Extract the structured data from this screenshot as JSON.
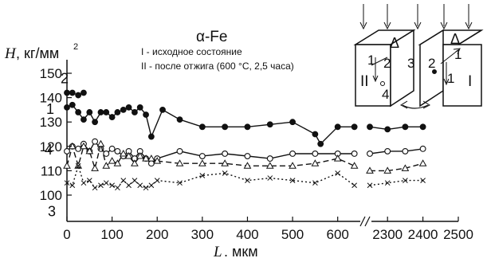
{
  "chart_data": {
    "type": "line",
    "title": "α-Fe",
    "ylabel_var": "H",
    "ylabel_unit": ", кг/мм",
    "ylabel_exp": "2",
    "xlabel_var": "L",
    "xlabel_unit": ". мкм",
    "legend_lines": [
      "I - исходное состояние",
      "II - после отжига (600 °C, 2,5 часа)"
    ],
    "inset_labels": [
      "I",
      "II",
      "Δ",
      "1",
      "2",
      "3",
      "4",
      "Δ",
      "1",
      "2",
      "1"
    ],
    "y_ticks": [
      "150",
      "140",
      "130",
      "120",
      "110",
      "100"
    ],
    "y_tick_values": [
      150,
      140,
      130,
      120,
      110,
      100
    ],
    "x_ticks": [
      "0",
      "100",
      "200",
      "300",
      "400",
      "500",
      "600",
      "2300",
      "2400",
      "2500"
    ],
    "x_tick_values": [
      0,
      100,
      200,
      300,
      400,
      500,
      600,
      2300,
      2400,
      2500
    ],
    "x_axis_break": [
      650,
      2250
    ],
    "ylim": [
      95,
      152
    ],
    "series": [
      {
        "label": "1",
        "marker": "filled-circle",
        "dash": "solid",
        "segments": [
          {
            "x": [
              0,
              12,
              25,
              37,
              50,
              62,
              75,
              87,
              100,
              112,
              125,
              137,
              150,
              162,
              175,
              187,
              212,
              250,
              300,
              350,
              400,
              450,
              500,
              550,
              562,
              600,
              637
            ],
            "y": [
              136,
              137,
              134,
              131,
              134,
              130,
              134,
              134,
              132,
              134,
              135,
              136,
              134,
              136,
              133,
              124,
              135,
              131,
              128,
              128,
              128,
              129,
              130,
              125,
              121,
              128,
              128
            ]
          },
          {
            "x": [
              2250,
              2300,
              2350,
              2400
            ],
            "y": [
              128,
              127,
              128,
              128
            ]
          }
        ]
      },
      {
        "label": "2",
        "marker": "filled-circle",
        "dash": "solid",
        "segments": [
          {
            "x": [
              0,
              12,
              25,
              37
            ],
            "y": [
              142,
              142,
              141,
              142
            ]
          }
        ]
      },
      {
        "label": "4",
        "marker": "open-circle",
        "dash": "solid",
        "segments": [
          {
            "x": [
              0,
              12,
              25,
              37,
              50,
              62,
              75,
              87,
              100,
              112,
              125,
              137,
              150,
              162,
              175,
              187,
              200,
              250,
              300,
              350,
              400,
              450,
              500,
              550,
              600,
              637
            ],
            "y": [
              118,
              120,
              119,
              121,
              118,
              122,
              119,
              117,
              119,
              118,
              116,
              118,
              115,
              118,
              115,
              113,
              115,
              118,
              116,
              117,
              116,
              115,
              117,
              117,
              117,
              117
            ]
          },
          {
            "x": [
              2250,
              2300,
              2350,
              2400
            ],
            "y": [
              117,
              118,
              118,
              119
            ]
          }
        ]
      },
      {
        "label": "",
        "marker": "open-triangle",
        "dash": "dashed",
        "segments": [
          {
            "x": [
              0,
              12,
              25,
              37,
              50,
              62,
              75,
              87,
              100,
              112,
              125,
              137,
              150,
              162,
              175,
              187,
              200,
              250,
              300,
              350,
              400,
              450,
              500,
              550,
              600,
              637
            ],
            "y": [
              112,
              120,
              112,
              120,
              118,
              111,
              121,
              112,
              114,
              113,
              117,
              116,
              113,
              116,
              115,
              115,
              114,
              113,
              113,
              113,
              112,
              112,
              112,
              113,
              115,
              112
            ]
          },
          {
            "x": [
              2250,
              2300,
              2350,
              2400
            ],
            "y": [
              110,
              110,
              111,
              113
            ]
          }
        ]
      },
      {
        "label": "3",
        "marker": "cross",
        "dash": "dotted",
        "segments": [
          {
            "x": [
              0,
              12,
              25,
              37,
              50,
              62,
              75,
              87,
              100,
              112,
              125,
              137,
              150,
              162,
              175,
              187,
              200,
              250,
              300,
              350,
              400,
              450,
              500,
              550,
              600,
              637
            ],
            "y": [
              105,
              104,
              112,
              105,
              106,
              103,
              104,
              105,
              104,
              103,
              106,
              104,
              106,
              104,
              103,
              104,
              106,
              105,
              108,
              109,
              106,
              107,
              106,
              105,
              109,
              104
            ]
          },
          {
            "x": [
              2250,
              2300,
              2350,
              2400
            ],
            "y": [
              104,
              105,
              106,
              106
            ]
          }
        ]
      }
    ]
  }
}
